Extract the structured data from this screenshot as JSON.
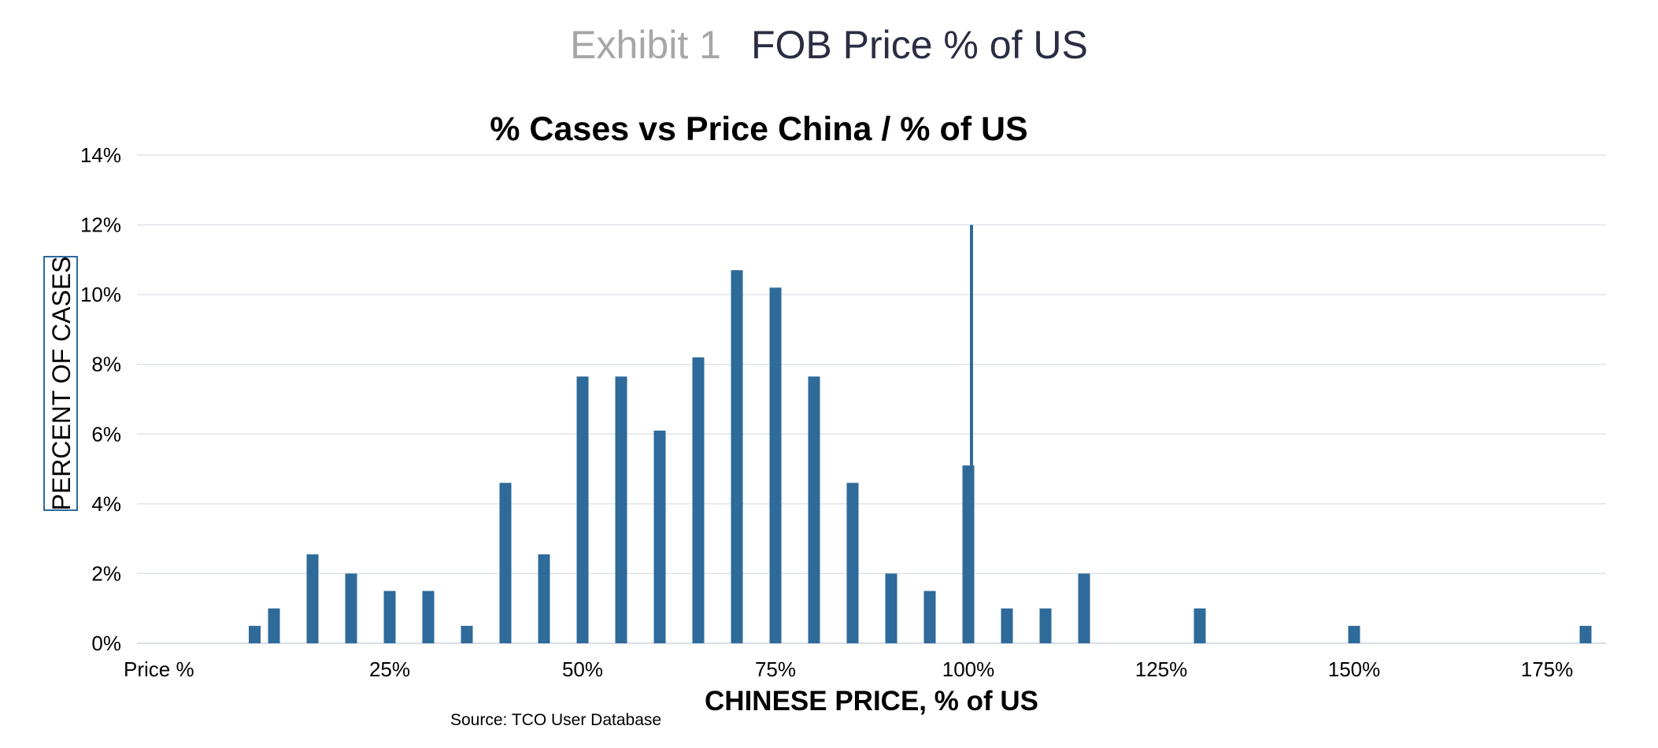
{
  "header": {
    "exhibit_label": "Exhibit 1",
    "exhibit_title": "FOB Price % of US"
  },
  "chart_data": {
    "type": "bar",
    "title": "% Cases vs Price  China /  % of US",
    "xlabel": "CHINESE PRICE, % of US",
    "ylabel": "PERCENT OF CASES",
    "source": "Source: TCO User Database",
    "x_unit": "percent of US price",
    "xlim": [
      0,
      190
    ],
    "ylim": [
      0,
      14
    ],
    "y_ticks": [
      0,
      2,
      4,
      6,
      8,
      10,
      12,
      14
    ],
    "y_tick_labels": [
      "0%",
      "2%",
      "4%",
      "6%",
      "8%",
      "10%",
      "12%",
      "14%"
    ],
    "x_ticks": [
      0,
      25,
      50,
      75,
      100,
      125,
      150,
      175
    ],
    "x_tick_labels": [
      "Price %",
      "25%",
      "50%",
      "75%",
      "100%",
      "125%",
      "150%",
      "175%"
    ],
    "grid": true,
    "bar_color": "#2e6a9a",
    "reference_line": {
      "x": 100,
      "y_from": 0.8,
      "y_to": 12,
      "color": "#2e6a9a"
    },
    "series": [
      {
        "name": "% Cases",
        "points": [
          {
            "x": 7.5,
            "y": 0.5
          },
          {
            "x": 10,
            "y": 1.0
          },
          {
            "x": 15,
            "y": 2.55
          },
          {
            "x": 20,
            "y": 2.0
          },
          {
            "x": 25,
            "y": 1.5
          },
          {
            "x": 30,
            "y": 1.5
          },
          {
            "x": 35,
            "y": 0.5
          },
          {
            "x": 40,
            "y": 4.6
          },
          {
            "x": 45,
            "y": 2.55
          },
          {
            "x": 50,
            "y": 7.65
          },
          {
            "x": 55,
            "y": 7.65
          },
          {
            "x": 60,
            "y": 6.1
          },
          {
            "x": 65,
            "y": 8.2
          },
          {
            "x": 70,
            "y": 10.7
          },
          {
            "x": 75,
            "y": 10.2
          },
          {
            "x": 80,
            "y": 7.65
          },
          {
            "x": 85,
            "y": 4.6
          },
          {
            "x": 90,
            "y": 2.0
          },
          {
            "x": 95,
            "y": 1.5
          },
          {
            "x": 100,
            "y": 5.1
          },
          {
            "x": 105,
            "y": 1.0
          },
          {
            "x": 110,
            "y": 1.0
          },
          {
            "x": 115,
            "y": 2.0
          },
          {
            "x": 130,
            "y": 1.0
          },
          {
            "x": 150,
            "y": 0.5
          },
          {
            "x": 180,
            "y": 0.5
          }
        ]
      }
    ]
  }
}
